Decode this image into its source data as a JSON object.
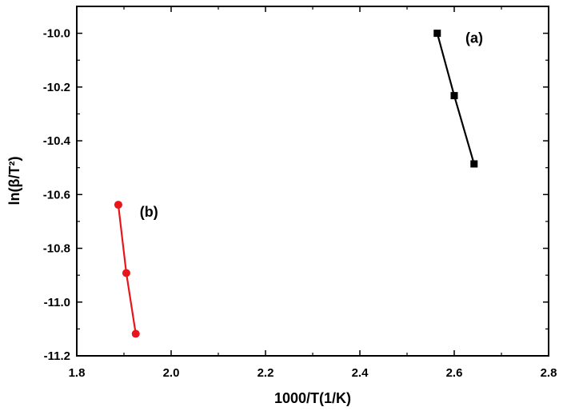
{
  "chart_data": {
    "type": "scatter",
    "xlabel": "1000/T(1/K)",
    "ylabel": "ln(β/T²)",
    "xlim": [
      1.8,
      2.8
    ],
    "ylim": [
      -11.2,
      -9.9
    ],
    "x_ticks": [
      1.8,
      2.0,
      2.2,
      2.4,
      2.6,
      2.8
    ],
    "x_tick_labels": [
      "1.8",
      "2.0",
      "2.2",
      "2.4",
      "2.6",
      "2.8"
    ],
    "y_ticks": [
      -10.0,
      -10.2,
      -10.4,
      -10.6,
      -10.8,
      -11.0,
      -11.2
    ],
    "y_tick_labels": [
      "-10.0",
      "-10.2",
      "-10.4",
      "-10.6",
      "-10.8",
      "-11.0",
      "-11.2"
    ],
    "grid": false,
    "series": [
      {
        "annotation": "(a)",
        "color": "#000000",
        "marker": "square",
        "x": [
          2.564,
          2.6,
          2.642
        ],
        "y": [
          -10.0,
          -10.232,
          -10.486
        ]
      },
      {
        "annotation": "(b)",
        "color": "#e8161b",
        "marker": "circle",
        "x": [
          1.888,
          1.905,
          1.925
        ],
        "y": [
          -10.638,
          -10.892,
          -11.118
        ]
      }
    ]
  }
}
